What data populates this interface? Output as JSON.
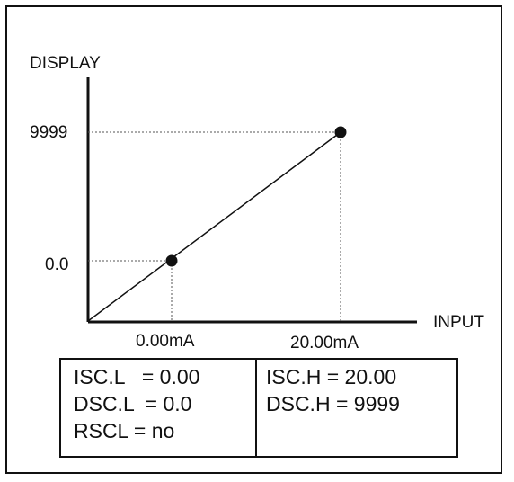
{
  "diagram": {
    "y_axis_label": "DISPLAY",
    "x_axis_label": "INPUT",
    "y_tick_high": "9999",
    "y_tick_low": "0.0",
    "x_tick_low": "0.00mA",
    "x_tick_high": "20.00mA",
    "line_color": "#111111",
    "guide_color": "#555555"
  },
  "chart_data": {
    "type": "line",
    "series": [
      {
        "x": [
          0.0,
          20.0
        ],
        "y": [
          0.0,
          9999
        ]
      }
    ],
    "xlabel": "INPUT",
    "ylabel": "DISPLAY",
    "x_tick_labels": [
      "0.00mA",
      "20.00mA"
    ],
    "y_tick_labels": [
      "0.0",
      "9999"
    ],
    "grid": false
  },
  "params": {
    "left": [
      "ISC.L   = 0.00",
      "DSC.L  = 0.0",
      "RSCL = no"
    ],
    "right": [
      "ISC.H = 20.00",
      "DSC.H = 9999"
    ]
  }
}
